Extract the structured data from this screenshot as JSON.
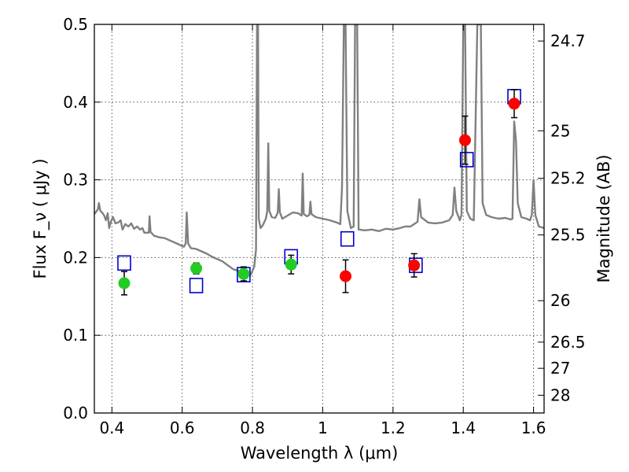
{
  "chart_data": {
    "type": "scatter",
    "xlabel": "Wavelength  λ (μm)",
    "ylabel": "Flux  F_ν  ( μJy )",
    "ylabel2": "Magnitude (AB)",
    "xlim": [
      0.35,
      1.63
    ],
    "ylim": [
      0.0,
      0.5
    ],
    "grid": true,
    "x_ticks": [
      0.4,
      0.6,
      0.8,
      1.0,
      1.2,
      1.4,
      1.6
    ],
    "x_tick_labels": [
      "0.4",
      "0.6",
      "0.8",
      "1",
      "1.2",
      "1.4",
      "1.6"
    ],
    "y_ticks": [
      0.0,
      0.1,
      0.2,
      0.3,
      0.4,
      0.5
    ],
    "y_tick_labels": [
      "0.0",
      "0.1",
      "0.2",
      "0.3",
      "0.4",
      "0.5"
    ],
    "mag_ticks": [
      {
        "label": "24.7",
        "flux": 0.4786
      },
      {
        "label": "25",
        "flux": 0.3631
      },
      {
        "label": "25.2",
        "flux": 0.302
      },
      {
        "label": "25.5",
        "flux": 0.2291
      },
      {
        "label": "26",
        "flux": 0.1445
      },
      {
        "label": "26.5",
        "flux": 0.0912
      },
      {
        "label": "27",
        "flux": 0.0575
      },
      {
        "label": "28",
        "flux": 0.0229
      }
    ],
    "colors": {
      "spectrum": "#808080",
      "model": "#0000cc",
      "optical": "#22cc22",
      "infrared": "#ff0000",
      "errorbar": "#000000",
      "grid": "#555555"
    },
    "series": [
      {
        "marker": "square",
        "color": "#0000cc",
        "points": [
          {
            "x": 0.435,
            "y": 0.193
          },
          {
            "x": 0.64,
            "y": 0.164
          },
          {
            "x": 0.775,
            "y": 0.178
          },
          {
            "x": 0.91,
            "y": 0.201
          },
          {
            "x": 1.07,
            "y": 0.224
          },
          {
            "x": 1.265,
            "y": 0.19
          },
          {
            "x": 1.41,
            "y": 0.326
          },
          {
            "x": 1.545,
            "y": 0.407
          }
        ]
      },
      {
        "marker": "circle",
        "color": "#22cc22",
        "points": [
          {
            "x": 0.435,
            "y": 0.167,
            "err": 0.015
          },
          {
            "x": 0.64,
            "y": 0.186,
            "err": 0.007
          },
          {
            "x": 0.775,
            "y": 0.179,
            "err": 0.009
          },
          {
            "x": 0.91,
            "y": 0.191,
            "err": 0.012
          }
        ]
      },
      {
        "marker": "circle",
        "color": "#ff0000",
        "points": [
          {
            "x": 1.065,
            "y": 0.176,
            "err": 0.021
          },
          {
            "x": 1.26,
            "y": 0.19,
            "err": 0.015
          },
          {
            "x": 1.405,
            "y": 0.351,
            "err": 0.031
          },
          {
            "x": 1.545,
            "y": 0.398,
            "err": 0.018
          }
        ]
      }
    ],
    "spectrum": [
      [
        0.35,
        0.256
      ],
      [
        0.36,
        0.262
      ],
      [
        0.363,
        0.27
      ],
      [
        0.367,
        0.26
      ],
      [
        0.372,
        0.258
      ],
      [
        0.378,
        0.254
      ],
      [
        0.383,
        0.248
      ],
      [
        0.388,
        0.257
      ],
      [
        0.392,
        0.238
      ],
      [
        0.397,
        0.246
      ],
      [
        0.403,
        0.252
      ],
      [
        0.41,
        0.244
      ],
      [
        0.418,
        0.245
      ],
      [
        0.425,
        0.248
      ],
      [
        0.43,
        0.236
      ],
      [
        0.438,
        0.243
      ],
      [
        0.447,
        0.24
      ],
      [
        0.455,
        0.244
      ],
      [
        0.463,
        0.237
      ],
      [
        0.472,
        0.24
      ],
      [
        0.48,
        0.236
      ],
      [
        0.487,
        0.238
      ],
      [
        0.492,
        0.232
      ],
      [
        0.5,
        0.232
      ],
      [
        0.505,
        0.232
      ],
      [
        0.507,
        0.253
      ],
      [
        0.51,
        0.233
      ],
      [
        0.52,
        0.228
      ],
      [
        0.535,
        0.226
      ],
      [
        0.55,
        0.225
      ],
      [
        0.565,
        0.222
      ],
      [
        0.58,
        0.219
      ],
      [
        0.595,
        0.216
      ],
      [
        0.605,
        0.214
      ],
      [
        0.61,
        0.218
      ],
      [
        0.613,
        0.258
      ],
      [
        0.617,
        0.218
      ],
      [
        0.625,
        0.212
      ],
      [
        0.64,
        0.211
      ],
      [
        0.655,
        0.208
      ],
      [
        0.67,
        0.205
      ],
      [
        0.685,
        0.201
      ],
      [
        0.7,
        0.198
      ],
      [
        0.715,
        0.195
      ],
      [
        0.73,
        0.19
      ],
      [
        0.745,
        0.185
      ],
      [
        0.76,
        0.183
      ],
      [
        0.78,
        0.181
      ],
      [
        0.795,
        0.178
      ],
      [
        0.805,
        0.188
      ],
      [
        0.81,
        0.21
      ],
      [
        0.813,
        0.5
      ],
      [
        0.816,
        0.5
      ],
      [
        0.818,
        0.25
      ],
      [
        0.823,
        0.238
      ],
      [
        0.83,
        0.242
      ],
      [
        0.838,
        0.25
      ],
      [
        0.842,
        0.26
      ],
      [
        0.845,
        0.347
      ],
      [
        0.848,
        0.26
      ],
      [
        0.855,
        0.252
      ],
      [
        0.865,
        0.251
      ],
      [
        0.872,
        0.258
      ],
      [
        0.875,
        0.288
      ],
      [
        0.878,
        0.258
      ],
      [
        0.885,
        0.25
      ],
      [
        0.9,
        0.254
      ],
      [
        0.915,
        0.258
      ],
      [
        0.93,
        0.257
      ],
      [
        0.94,
        0.254
      ],
      [
        0.943,
        0.308
      ],
      [
        0.946,
        0.256
      ],
      [
        0.955,
        0.253
      ],
      [
        0.962,
        0.255
      ],
      [
        0.965,
        0.272
      ],
      [
        0.968,
        0.256
      ],
      [
        0.98,
        0.252
      ],
      [
        1.0,
        0.25
      ],
      [
        1.02,
        0.248
      ],
      [
        1.04,
        0.245
      ],
      [
        1.05,
        0.243
      ],
      [
        1.055,
        0.29
      ],
      [
        1.06,
        0.5
      ],
      [
        1.065,
        0.5
      ],
      [
        1.07,
        0.26
      ],
      [
        1.08,
        0.238
      ],
      [
        1.088,
        0.24
      ],
      [
        1.092,
        0.5
      ],
      [
        1.098,
        0.5
      ],
      [
        1.102,
        0.236
      ],
      [
        1.12,
        0.235
      ],
      [
        1.14,
        0.236
      ],
      [
        1.16,
        0.234
      ],
      [
        1.18,
        0.237
      ],
      [
        1.2,
        0.236
      ],
      [
        1.22,
        0.238
      ],
      [
        1.235,
        0.24
      ],
      [
        1.25,
        0.24
      ],
      [
        1.26,
        0.243
      ],
      [
        1.27,
        0.246
      ],
      [
        1.275,
        0.275
      ],
      [
        1.28,
        0.252
      ],
      [
        1.3,
        0.245
      ],
      [
        1.32,
        0.244
      ],
      [
        1.34,
        0.245
      ],
      [
        1.36,
        0.248
      ],
      [
        1.37,
        0.255
      ],
      [
        1.375,
        0.29
      ],
      [
        1.38,
        0.26
      ],
      [
        1.39,
        0.248
      ],
      [
        1.395,
        0.255
      ],
      [
        1.4,
        0.5
      ],
      [
        1.405,
        0.5
      ],
      [
        1.41,
        0.26
      ],
      [
        1.42,
        0.25
      ],
      [
        1.43,
        0.248
      ],
      [
        1.44,
        0.5
      ],
      [
        1.45,
        0.5
      ],
      [
        1.455,
        0.27
      ],
      [
        1.465,
        0.255
      ],
      [
        1.48,
        0.252
      ],
      [
        1.5,
        0.25
      ],
      [
        1.52,
        0.251
      ],
      [
        1.535,
        0.249
      ],
      [
        1.54,
        0.25
      ],
      [
        1.545,
        0.375
      ],
      [
        1.55,
        0.35
      ],
      [
        1.555,
        0.27
      ],
      [
        1.565,
        0.252
      ],
      [
        1.58,
        0.25
      ],
      [
        1.59,
        0.248
      ],
      [
        1.595,
        0.255
      ],
      [
        1.6,
        0.3
      ],
      [
        1.605,
        0.255
      ],
      [
        1.615,
        0.24
      ],
      [
        1.63,
        0.238
      ]
    ]
  }
}
